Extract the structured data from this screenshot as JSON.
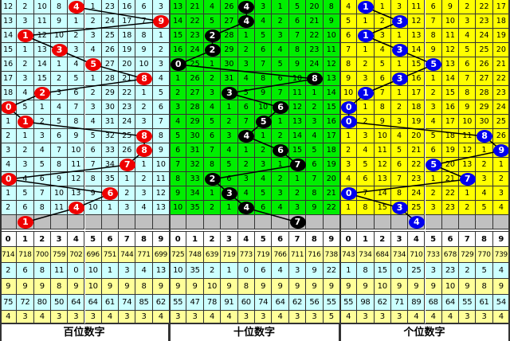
{
  "chart_data": {
    "type": "table",
    "columns": [
      "0",
      "1",
      "2",
      "3",
      "4",
      "5",
      "6",
      "7",
      "8",
      "9"
    ],
    "panels": [
      {
        "title": "百位数字",
        "bg": "#ccffff",
        "ball_color": "#ee0000",
        "rows": [
          [
            12,
            2,
            10,
            8,
            4,
            1,
            23,
            16,
            6,
            3
          ],
          [
            13,
            3,
            11,
            9,
            1,
            2,
            24,
            17,
            7,
            9
          ],
          [
            14,
            1,
            12,
            10,
            2,
            3,
            25,
            18,
            8,
            1
          ],
          [
            15,
            1,
            13,
            3,
            3,
            4,
            26,
            19,
            9,
            2
          ],
          [
            16,
            2,
            14,
            1,
            4,
            5,
            27,
            20,
            10,
            3
          ],
          [
            17,
            3,
            15,
            2,
            5,
            1,
            28,
            21,
            8,
            4
          ],
          [
            18,
            4,
            2,
            3,
            6,
            2,
            29,
            22,
            1,
            5
          ],
          [
            0,
            5,
            1,
            4,
            7,
            3,
            30,
            23,
            2,
            6
          ],
          [
            1,
            1,
            2,
            5,
            8,
            4,
            31,
            24,
            3,
            7
          ],
          [
            2,
            1,
            3,
            6,
            9,
            5,
            32,
            25,
            8,
            8
          ],
          [
            3,
            2,
            4,
            7,
            10,
            6,
            33,
            26,
            8,
            9
          ],
          [
            4,
            3,
            5,
            8,
            11,
            7,
            34,
            7,
            1,
            10
          ],
          [
            0,
            4,
            6,
            9,
            12,
            8,
            35,
            1,
            2,
            11
          ],
          [
            1,
            5,
            7,
            10,
            13,
            9,
            6,
            2,
            3,
            12
          ],
          [
            2,
            6,
            8,
            11,
            4,
            10,
            1,
            3,
            4,
            13
          ]
        ],
        "hits": [
          4,
          9,
          1,
          3,
          5,
          8,
          2,
          0,
          1,
          8,
          8,
          7,
          0,
          6,
          4
        ],
        "next_hit": 1,
        "stats": [
          [
            714,
            718,
            700,
            759,
            702,
            696,
            751,
            744,
            771,
            699
          ],
          [
            2,
            6,
            8,
            11,
            0,
            10,
            1,
            3,
            4,
            13
          ],
          [
            9,
            9,
            9,
            8,
            9,
            10,
            9,
            9,
            8,
            9
          ],
          [
            75,
            72,
            80,
            50,
            64,
            64,
            61,
            74,
            85,
            62
          ],
          [
            4,
            3,
            4,
            3,
            3,
            3,
            4,
            3,
            3,
            4
          ]
        ]
      },
      {
        "title": "十位数字",
        "bg": "#00ee00",
        "ball_color": "#000000",
        "rows": [
          [
            13,
            21,
            4,
            26,
            4,
            3,
            1,
            5,
            20,
            8
          ],
          [
            14,
            22,
            5,
            27,
            4,
            4,
            2,
            6,
            21,
            9
          ],
          [
            15,
            23,
            2,
            28,
            1,
            5,
            3,
            7,
            22,
            10
          ],
          [
            16,
            24,
            2,
            29,
            2,
            6,
            4,
            8,
            23,
            11
          ],
          [
            0,
            25,
            1,
            30,
            3,
            7,
            5,
            9,
            24,
            12
          ],
          [
            1,
            26,
            2,
            31,
            4,
            8,
            6,
            10,
            8,
            13
          ],
          [
            2,
            27,
            3,
            3,
            5,
            9,
            7,
            11,
            1,
            14
          ],
          [
            3,
            28,
            4,
            1,
            6,
            10,
            6,
            12,
            2,
            15
          ],
          [
            4,
            29,
            5,
            2,
            7,
            5,
            1,
            13,
            3,
            16
          ],
          [
            5,
            30,
            6,
            3,
            4,
            1,
            2,
            14,
            4,
            17
          ],
          [
            6,
            31,
            7,
            4,
            1,
            2,
            6,
            15,
            5,
            18
          ],
          [
            7,
            32,
            8,
            5,
            2,
            3,
            1,
            7,
            6,
            19
          ],
          [
            8,
            33,
            2,
            6,
            3,
            4,
            2,
            1,
            7,
            20
          ],
          [
            9,
            34,
            1,
            3,
            4,
            5,
            3,
            2,
            8,
            21
          ],
          [
            10,
            35,
            2,
            1,
            4,
            6,
            4,
            3,
            9,
            22
          ]
        ],
        "hits": [
          4,
          4,
          2,
          2,
          0,
          8,
          3,
          6,
          5,
          4,
          6,
          7,
          2,
          3,
          4
        ],
        "next_hit": 7,
        "stats": [
          [
            725,
            748,
            639,
            719,
            773,
            719,
            766,
            711,
            716,
            738
          ],
          [
            10,
            35,
            2,
            1,
            0,
            6,
            4,
            3,
            9,
            22
          ],
          [
            9,
            9,
            10,
            9,
            8,
            9,
            9,
            9,
            9,
            9
          ],
          [
            55,
            47,
            78,
            91,
            60,
            74,
            64,
            62,
            56,
            55
          ],
          [
            3,
            3,
            4,
            4,
            3,
            3,
            4,
            3,
            3,
            5
          ]
        ]
      },
      {
        "title": "个位数字",
        "bg": "#ffff00",
        "ball_color": "#0000ee",
        "rows": [
          [
            4,
            1,
            1,
            3,
            11,
            6,
            9,
            2,
            22,
            17
          ],
          [
            5,
            1,
            2,
            3,
            12,
            7,
            10,
            3,
            23,
            18
          ],
          [
            6,
            1,
            3,
            1,
            13,
            8,
            11,
            4,
            24,
            19
          ],
          [
            7,
            1,
            4,
            3,
            14,
            9,
            12,
            5,
            25,
            20
          ],
          [
            8,
            2,
            5,
            1,
            15,
            5,
            13,
            6,
            26,
            21
          ],
          [
            9,
            3,
            6,
            3,
            16,
            1,
            14,
            7,
            27,
            22
          ],
          [
            10,
            1,
            7,
            1,
            17,
            2,
            15,
            8,
            28,
            23
          ],
          [
            0,
            1,
            8,
            2,
            18,
            3,
            16,
            9,
            29,
            24
          ],
          [
            0,
            2,
            9,
            3,
            19,
            4,
            17,
            10,
            30,
            25
          ],
          [
            1,
            3,
            10,
            4,
            20,
            5,
            18,
            11,
            8,
            26
          ],
          [
            2,
            4,
            11,
            5,
            21,
            6,
            19,
            12,
            1,
            9
          ],
          [
            3,
            5,
            12,
            6,
            22,
            5,
            20,
            13,
            2,
            1
          ],
          [
            4,
            6,
            13,
            7,
            23,
            1,
            21,
            7,
            3,
            2
          ],
          [
            0,
            7,
            14,
            8,
            24,
            2,
            22,
            1,
            4,
            3
          ],
          [
            1,
            8,
            15,
            3,
            25,
            3,
            23,
            2,
            5,
            4
          ]
        ],
        "hits": [
          1,
          3,
          1,
          3,
          5,
          3,
          1,
          0,
          0,
          8,
          9,
          5,
          7,
          0,
          3
        ],
        "next_hit": 4,
        "stats": [
          [
            743,
            734,
            684,
            734,
            710,
            733,
            678,
            729,
            770,
            739
          ],
          [
            1,
            8,
            15,
            0,
            25,
            3,
            23,
            2,
            5,
            4
          ],
          [
            9,
            9,
            10,
            9,
            9,
            9,
            10,
            9,
            8,
            9
          ],
          [
            55,
            98,
            62,
            71,
            89,
            68,
            64,
            55,
            61,
            54
          ],
          [
            4,
            3,
            3,
            3,
            4,
            4,
            4,
            3,
            3,
            4
          ]
        ]
      }
    ]
  }
}
